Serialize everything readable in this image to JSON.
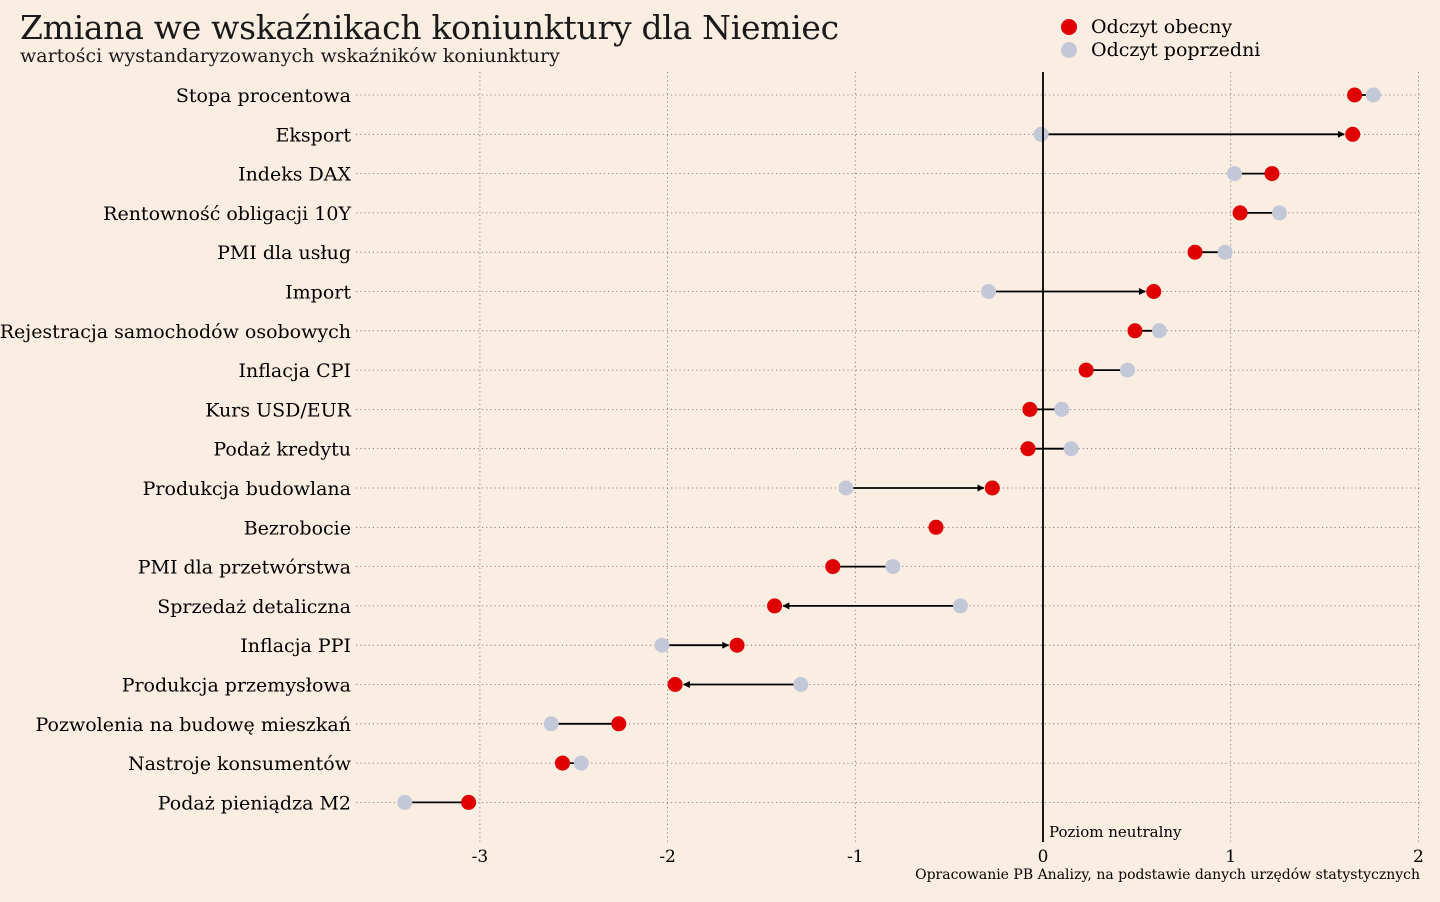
{
  "chart_data": {
    "type": "dumbbell",
    "title": "Zmiana we wskaźnikach koniunktury dla Niemiec",
    "subtitle": "wartości wystandaryzowanych wskaźników koniunktury",
    "legend": {
      "placement": "top-right",
      "current": "Odczyt obecny",
      "previous": "Odczyt poprzedni"
    },
    "colors": {
      "current": "#e00000",
      "previous": "#c2c8d8",
      "background": "#faede2"
    },
    "xlim": [
      -3.3,
      2.0
    ],
    "xticks": [
      "-3",
      "-2",
      "-1",
      "0",
      "1",
      "2"
    ],
    "xtick_values": [
      -3,
      -2,
      -1,
      0,
      1,
      2
    ],
    "neutral_label": "Poziom neutralny",
    "source": "Opracowanie PB Analizy, na podstawie danych urzędów statystycznych",
    "grid": true,
    "categories": [
      "Stopa procentowa",
      "Eksport",
      "Indeks DAX",
      "Rentowność obligacji 10Y",
      "PMI dla usług",
      "Import",
      "Rejestracja samochodów osobowych",
      "Inflacja CPI",
      "Kurs USD/EUR",
      "Podaż kredytu",
      "Produkcja budowlana",
      "Bezrobocie",
      "PMI dla przetwórstwa",
      "Sprzedaż detaliczna",
      "Inflacja PPI",
      "Produkcja przemysłowa",
      "Pozwolenia na budowę mieszkań",
      "Nastroje konsumentów",
      "Podaż pieniądza M2"
    ],
    "series": [
      {
        "name": "Odczyt obecny",
        "values": [
          1.66,
          1.65,
          1.22,
          1.05,
          0.81,
          0.59,
          0.49,
          0.23,
          -0.07,
          -0.08,
          -0.27,
          -0.57,
          -1.12,
          -1.43,
          -1.63,
          -1.96,
          -2.26,
          -2.56,
          -3.06
        ]
      },
      {
        "name": "Odczyt poprzedni",
        "values": [
          1.76,
          -0.01,
          1.02,
          1.26,
          0.97,
          -0.29,
          0.62,
          0.45,
          0.1,
          0.15,
          -1.05,
          -0.57,
          -0.8,
          -0.44,
          -2.03,
          -1.29,
          -2.62,
          -2.46,
          -3.4
        ]
      }
    ]
  }
}
